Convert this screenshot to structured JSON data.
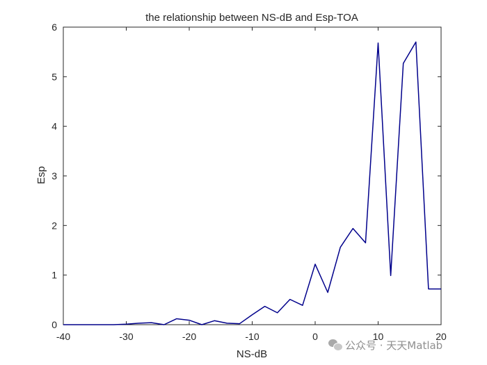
{
  "chart_data": {
    "type": "line",
    "title": "the relationship between NS-dB and Esp-TOA",
    "xlabel": "NS-dB",
    "ylabel": "Esp",
    "xlim": [
      -40,
      20
    ],
    "ylim": [
      0,
      6
    ],
    "xticks": [
      "-40",
      "-30",
      "-20",
      "-10",
      "0",
      "10",
      "20"
    ],
    "yticks": [
      "0",
      "1",
      "2",
      "3",
      "4",
      "5",
      "6"
    ],
    "grid": false,
    "legend": "none",
    "line_color": "#00008B",
    "series": [
      {
        "x": [
          -40,
          -38,
          -36,
          -34,
          -32,
          -30,
          -28,
          -26,
          -24,
          -22,
          -20,
          -18,
          -16,
          -14,
          -12,
          -10,
          -8,
          -6,
          -4,
          -2,
          0,
          2,
          4,
          6,
          8,
          10,
          12,
          14,
          16,
          18,
          20
        ],
        "y": [
          0.0,
          0.0,
          0.0,
          0.0,
          0.0,
          0.01,
          0.03,
          0.04,
          0.0,
          0.12,
          0.09,
          0.0,
          0.08,
          0.03,
          0.02,
          0.2,
          0.37,
          0.24,
          0.51,
          0.39,
          1.22,
          0.65,
          1.56,
          1.94,
          1.65,
          5.68,
          0.99,
          5.27,
          5.7,
          0.72,
          0.72
        ]
      }
    ]
  },
  "watermark": {
    "text": "公众号 · 天天Matlab",
    "icon": "wechat-icon"
  }
}
